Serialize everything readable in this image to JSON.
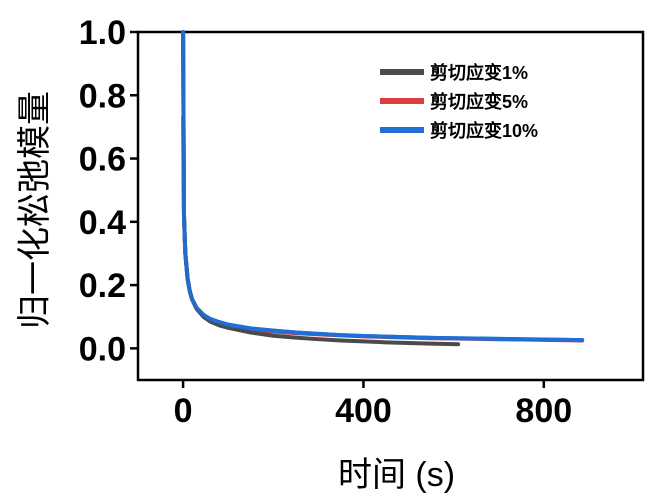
{
  "chart_data": {
    "type": "line",
    "title": "",
    "xlabel": "时间 (s)",
    "ylabel": "归一化松弛模量",
    "xlim": [
      -100,
      1020
    ],
    "ylim": [
      -0.1,
      1.0
    ],
    "xticks": [
      0,
      400,
      800
    ],
    "yticks": [
      0.0,
      0.2,
      0.4,
      0.6,
      0.8,
      1.0
    ],
    "xtick_labels": [
      "0",
      "400",
      "800"
    ],
    "ytick_labels": [
      "0.0",
      "0.2",
      "0.4",
      "0.6",
      "0.8",
      "1.0"
    ],
    "legend_position": "top-right",
    "grid": false,
    "series": [
      {
        "name": "剪切应变1%",
        "color": "#4a4a4a",
        "x": [
          0,
          2,
          5,
          10,
          15,
          20,
          30,
          45,
          60,
          80,
          100,
          150,
          200,
          250,
          300,
          350,
          400,
          450,
          500,
          550,
          610
        ],
        "y": [
          1.0,
          0.42,
          0.3,
          0.22,
          0.18,
          0.155,
          0.125,
          0.1,
          0.085,
          0.073,
          0.065,
          0.05,
          0.04,
          0.034,
          0.029,
          0.025,
          0.022,
          0.019,
          0.017,
          0.015,
          0.013
        ]
      },
      {
        "name": "剪切应变5%",
        "color": "#e03c3c",
        "x": [
          0,
          2,
          5,
          10,
          15,
          20,
          30,
          45,
          60,
          80,
          100,
          150,
          200,
          250,
          300,
          350,
          400,
          450,
          500,
          550,
          600,
          650,
          700,
          750,
          800,
          885
        ],
        "y": [
          0.73,
          0.41,
          0.3,
          0.22,
          0.18,
          0.155,
          0.125,
          0.103,
          0.09,
          0.08,
          0.072,
          0.06,
          0.053,
          0.048,
          0.044,
          0.041,
          0.038,
          0.036,
          0.034,
          0.032,
          0.031,
          0.03,
          0.029,
          0.028,
          0.027,
          0.025
        ]
      },
      {
        "name": "剪切应变10%",
        "color": "#1f6fd6",
        "x": [
          0,
          2,
          5,
          10,
          15,
          20,
          30,
          45,
          60,
          80,
          100,
          150,
          200,
          250,
          300,
          350,
          400,
          450,
          500,
          550,
          600,
          650,
          700,
          750,
          800,
          885
        ],
        "y": [
          1.0,
          0.42,
          0.3,
          0.22,
          0.18,
          0.155,
          0.128,
          0.106,
          0.093,
          0.083,
          0.075,
          0.063,
          0.056,
          0.05,
          0.046,
          0.042,
          0.039,
          0.037,
          0.035,
          0.033,
          0.032,
          0.031,
          0.03,
          0.029,
          0.028,
          0.026
        ]
      }
    ]
  }
}
